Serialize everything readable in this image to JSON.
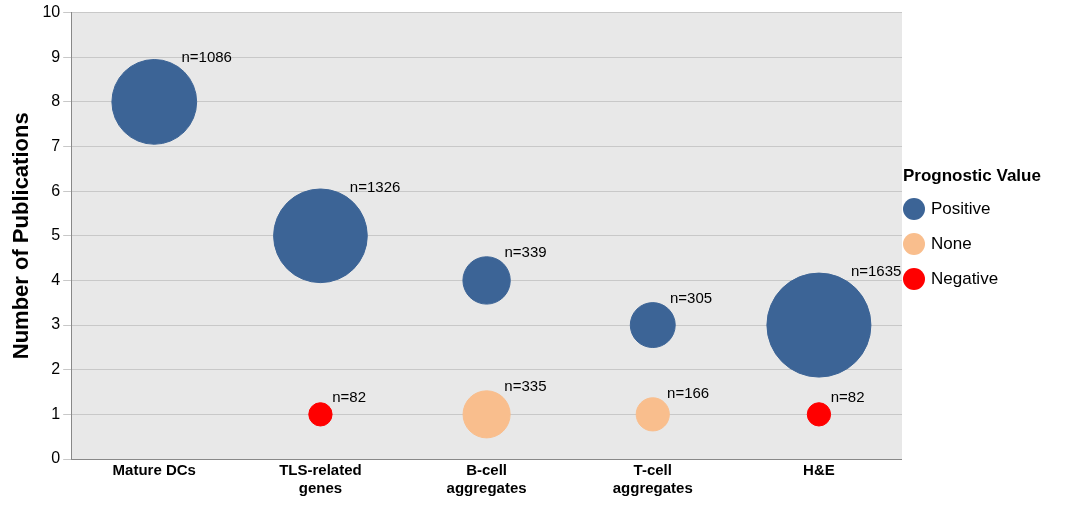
{
  "chart_data": {
    "type": "bubble",
    "categories": [
      "Mature DCs",
      "TLS-related genes",
      "B-cell aggregates",
      "T-cell aggregates",
      "H&E"
    ],
    "series": [
      {
        "name": "Positive",
        "color": "#3c6496",
        "values": [
          8,
          5,
          4,
          3,
          3
        ],
        "sizes": [
          1086,
          1326,
          339,
          305,
          1635
        ],
        "value_labels": [
          "n=1086",
          "n=1326",
          "n=339",
          "n=305",
          "n=1635"
        ]
      },
      {
        "name": "None",
        "color": "#f9be8d",
        "values": [
          null,
          null,
          1,
          1,
          null
        ],
        "sizes": [
          null,
          null,
          335,
          166,
          null
        ],
        "value_labels": [
          null,
          null,
          "n=335",
          "n=166",
          null
        ]
      },
      {
        "name": "Negative",
        "color": "#ff0000",
        "values": [
          null,
          1,
          null,
          null,
          1
        ],
        "sizes": [
          null,
          82,
          null,
          null,
          82
        ],
        "value_labels": [
          null,
          "n=82",
          null,
          null,
          "n=82"
        ]
      }
    ],
    "ylabel": "Number of Publications",
    "ylim": [
      0,
      10
    ],
    "yticks": [
      0,
      1,
      2,
      3,
      4,
      5,
      6,
      7,
      8,
      9,
      10
    ],
    "grid": "y",
    "legend": "right",
    "legend_title": "Prognostic Value"
  }
}
